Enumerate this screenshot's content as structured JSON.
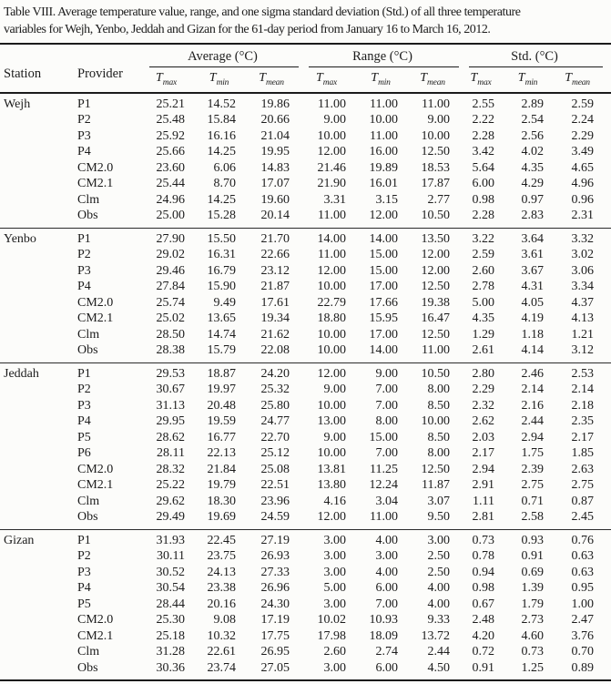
{
  "caption": {
    "lines": [
      "Table VIII. Average temperature value, range, and one sigma standard deviation (Std.) of all three temperature",
      "variables for Wejh, Yenbo, Jeddah and Gizan for the 61-day period from January 16 to March 16, 2012."
    ]
  },
  "colors": {
    "background": "#fcfcfa",
    "text": "#1c1c1c",
    "rule": "#1b1b1b"
  },
  "table": {
    "columns": {
      "station": "Station",
      "provider": "Provider"
    },
    "groups": [
      {
        "label": "Average (°C)"
      },
      {
        "label": "Range (°C)"
      },
      {
        "label": "Std. (°C)"
      }
    ],
    "sub": [
      {
        "base": "T",
        "sub": "max"
      },
      {
        "base": "T",
        "sub": "min"
      },
      {
        "base": "T",
        "sub": "mean"
      }
    ],
    "stations": [
      {
        "name": "Wejh",
        "rows": [
          {
            "provider": "P1",
            "values": [
              "25.21",
              "14.52",
              "19.86",
              "11.00",
              "11.00",
              "11.00",
              "2.55",
              "2.89",
              "2.59"
            ]
          },
          {
            "provider": "P2",
            "values": [
              "25.48",
              "15.84",
              "20.66",
              "9.00",
              "10.00",
              "9.00",
              "2.22",
              "2.54",
              "2.24"
            ]
          },
          {
            "provider": "P3",
            "values": [
              "25.92",
              "16.16",
              "21.04",
              "10.00",
              "11.00",
              "10.00",
              "2.28",
              "2.56",
              "2.29"
            ]
          },
          {
            "provider": "P4",
            "values": [
              "25.66",
              "14.25",
              "19.95",
              "12.00",
              "16.00",
              "12.50",
              "3.42",
              "4.02",
              "3.49"
            ]
          },
          {
            "provider": "CM2.0",
            "values": [
              "23.60",
              "6.06",
              "14.83",
              "21.46",
              "19.89",
              "18.53",
              "5.64",
              "4.35",
              "4.65"
            ]
          },
          {
            "provider": "CM2.1",
            "values": [
              "25.44",
              "8.70",
              "17.07",
              "21.90",
              "16.01",
              "17.87",
              "6.00",
              "4.29",
              "4.96"
            ]
          },
          {
            "provider": "Clm",
            "values": [
              "24.96",
              "14.25",
              "19.60",
              "3.31",
              "3.15",
              "2.77",
              "0.98",
              "0.97",
              "0.96"
            ]
          },
          {
            "provider": "Obs",
            "values": [
              "25.00",
              "15.28",
              "20.14",
              "11.00",
              "12.00",
              "10.50",
              "2.28",
              "2.83",
              "2.31"
            ]
          }
        ]
      },
      {
        "name": "Yenbo",
        "rows": [
          {
            "provider": "P1",
            "values": [
              "27.90",
              "15.50",
              "21.70",
              "14.00",
              "14.00",
              "13.50",
              "3.22",
              "3.64",
              "3.32"
            ]
          },
          {
            "provider": "P2",
            "values": [
              "29.02",
              "16.31",
              "22.66",
              "11.00",
              "15.00",
              "12.00",
              "2.59",
              "3.61",
              "3.02"
            ]
          },
          {
            "provider": "P3",
            "values": [
              "29.46",
              "16.79",
              "23.12",
              "12.00",
              "15.00",
              "12.00",
              "2.60",
              "3.67",
              "3.06"
            ]
          },
          {
            "provider": "P4",
            "values": [
              "27.84",
              "15.90",
              "21.87",
              "10.00",
              "17.00",
              "12.50",
              "2.78",
              "4.31",
              "3.34"
            ]
          },
          {
            "provider": "CM2.0",
            "values": [
              "25.74",
              "9.49",
              "17.61",
              "22.79",
              "17.66",
              "19.38",
              "5.00",
              "4.05",
              "4.37"
            ]
          },
          {
            "provider": "CM2.1",
            "values": [
              "25.02",
              "13.65",
              "19.34",
              "18.80",
              "15.95",
              "16.47",
              "4.35",
              "4.19",
              "4.13"
            ]
          },
          {
            "provider": "Clm",
            "values": [
              "28.50",
              "14.74",
              "21.62",
              "10.00",
              "17.00",
              "12.50",
              "1.29",
              "1.18",
              "1.21"
            ]
          },
          {
            "provider": "Obs",
            "values": [
              "28.38",
              "15.79",
              "22.08",
              "10.00",
              "14.00",
              "11.00",
              "2.61",
              "4.14",
              "3.12"
            ]
          }
        ]
      },
      {
        "name": "Jeddah",
        "rows": [
          {
            "provider": "P1",
            "values": [
              "29.53",
              "18.87",
              "24.20",
              "12.00",
              "9.00",
              "10.50",
              "2.80",
              "2.46",
              "2.53"
            ]
          },
          {
            "provider": "P2",
            "values": [
              "30.67",
              "19.97",
              "25.32",
              "9.00",
              "7.00",
              "8.00",
              "2.29",
              "2.14",
              "2.14"
            ]
          },
          {
            "provider": "P3",
            "values": [
              "31.13",
              "20.48",
              "25.80",
              "10.00",
              "7.00",
              "8.50",
              "2.32",
              "2.16",
              "2.18"
            ]
          },
          {
            "provider": "P4",
            "values": [
              "29.95",
              "19.59",
              "24.77",
              "13.00",
              "8.00",
              "10.00",
              "2.62",
              "2.44",
              "2.35"
            ]
          },
          {
            "provider": "P5",
            "values": [
              "28.62",
              "16.77",
              "22.70",
              "9.00",
              "15.00",
              "8.50",
              "2.03",
              "2.94",
              "2.17"
            ]
          },
          {
            "provider": "P6",
            "values": [
              "28.11",
              "22.13",
              "25.12",
              "10.00",
              "7.00",
              "8.00",
              "2.17",
              "1.75",
              "1.85"
            ]
          },
          {
            "provider": "CM2.0",
            "values": [
              "28.32",
              "21.84",
              "25.08",
              "13.81",
              "11.25",
              "12.50",
              "2.94",
              "2.39",
              "2.63"
            ]
          },
          {
            "provider": "CM2.1",
            "values": [
              "25.22",
              "19.79",
              "22.51",
              "13.80",
              "12.24",
              "11.87",
              "2.91",
              "2.75",
              "2.75"
            ]
          },
          {
            "provider": "Clm",
            "values": [
              "29.62",
              "18.30",
              "23.96",
              "4.16",
              "3.04",
              "3.07",
              "1.11",
              "0.71",
              "0.87"
            ]
          },
          {
            "provider": "Obs",
            "values": [
              "29.49",
              "19.69",
              "24.59",
              "12.00",
              "11.00",
              "9.50",
              "2.81",
              "2.58",
              "2.45"
            ]
          }
        ]
      },
      {
        "name": "Gizan",
        "rows": [
          {
            "provider": "P1",
            "values": [
              "31.93",
              "22.45",
              "27.19",
              "3.00",
              "4.00",
              "3.00",
              "0.73",
              "0.93",
              "0.76"
            ]
          },
          {
            "provider": "P2",
            "values": [
              "30.11",
              "23.75",
              "26.93",
              "3.00",
              "3.00",
              "2.50",
              "0.78",
              "0.91",
              "0.63"
            ]
          },
          {
            "provider": "P3",
            "values": [
              "30.52",
              "24.13",
              "27.33",
              "3.00",
              "4.00",
              "2.50",
              "0.94",
              "0.69",
              "0.63"
            ]
          },
          {
            "provider": "P4",
            "values": [
              "30.54",
              "23.38",
              "26.96",
              "5.00",
              "6.00",
              "4.00",
              "0.98",
              "1.39",
              "0.95"
            ]
          },
          {
            "provider": "P5",
            "values": [
              "28.44",
              "20.16",
              "24.30",
              "3.00",
              "7.00",
              "4.00",
              "0.67",
              "1.79",
              "1.00"
            ]
          },
          {
            "provider": "CM2.0",
            "values": [
              "25.30",
              "9.08",
              "17.19",
              "10.02",
              "10.93",
              "9.33",
              "2.48",
              "2.73",
              "2.47"
            ]
          },
          {
            "provider": "CM2.1",
            "values": [
              "25.18",
              "10.32",
              "17.75",
              "17.98",
              "18.09",
              "13.72",
              "4.20",
              "4.60",
              "3.76"
            ]
          },
          {
            "provider": "Clm",
            "values": [
              "31.28",
              "22.61",
              "26.95",
              "2.60",
              "2.74",
              "2.44",
              "0.72",
              "0.73",
              "0.70"
            ]
          },
          {
            "provider": "Obs",
            "values": [
              "30.36",
              "23.74",
              "27.05",
              "3.00",
              "6.00",
              "4.50",
              "0.91",
              "1.25",
              "0.89"
            ]
          }
        ]
      }
    ]
  }
}
